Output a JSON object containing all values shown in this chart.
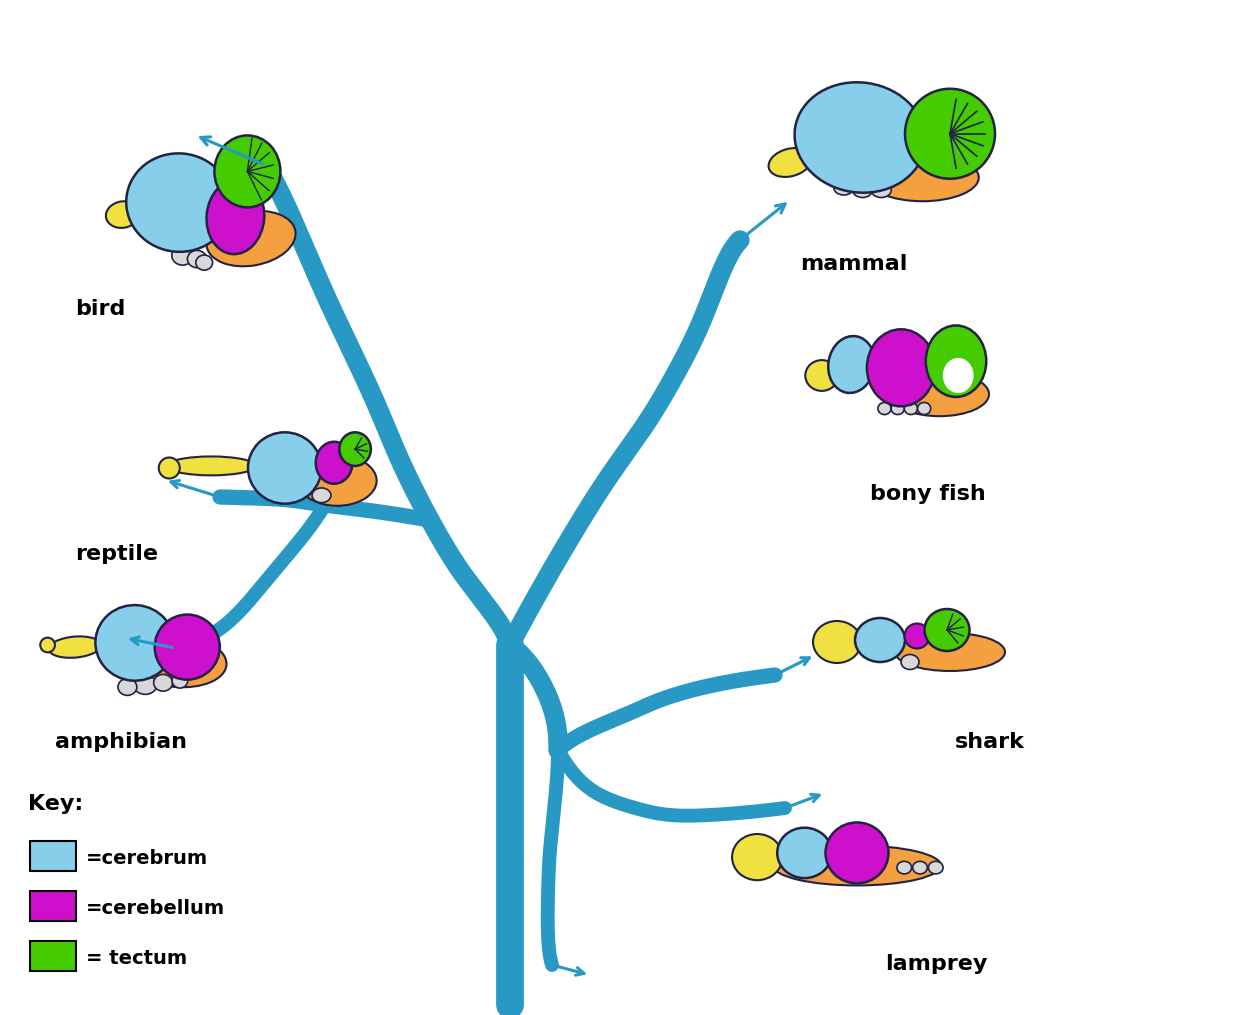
{
  "background_color": "#ffffff",
  "tree_color": "#2899c4",
  "cerebrum_color": "#87ceeb",
  "cerebellum_color": "#cc10cc",
  "tectum_color": "#44cc00",
  "olfactory_color": "#f0e040",
  "brainstem_color": "#f4a040",
  "medulla_color": "#d8d8d8",
  "outline_color": "#222244",
  "labels": {
    "bird": "bird",
    "mammal": "mammal",
    "reptile": "reptile",
    "bony_fish": "bony fish",
    "amphibian": "amphibian",
    "shark": "shark",
    "lamprey": "lamprey"
  },
  "label_fontsize": 16,
  "key_title": "Key:",
  "key_items": [
    {
      "color": "#87ceeb",
      "label": "=cerebrum"
    },
    {
      "color": "#cc10cc",
      "label": "=cerebellum"
    },
    {
      "color": "#44cc00",
      "label": "= tectum"
    }
  ]
}
